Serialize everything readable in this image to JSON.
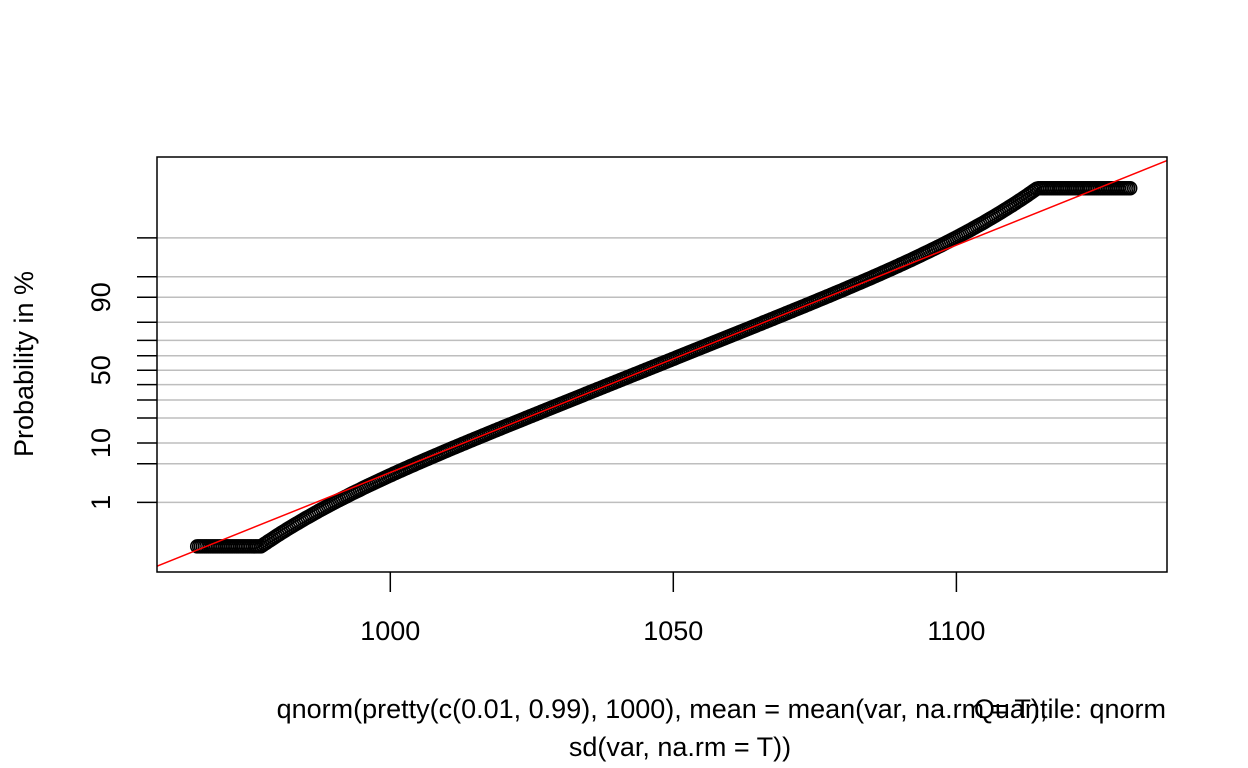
{
  "chart_data": {
    "type": "scatter",
    "title": "",
    "xlabel_lines": [
      "qnorm(pretty(c(0.01, 0.99), 1000), mean = mean(var, na.rm = T),",
      "sd(var, na.rm = T))"
    ],
    "xlabel_overlay": "Quantile: qnorm",
    "ylabel": "Probability in %",
    "x_ticks": [
      1000,
      1050,
      1100
    ],
    "x_tick_labels": [
      "1000",
      "1050",
      "1100"
    ],
    "xlim": [
      958.8,
      1137.2
    ],
    "y_scale": "normal-probability",
    "ylim_probit": [
      -3.55,
      3.75
    ],
    "y_ticks_percent": [
      1,
      5,
      10,
      20,
      30,
      40,
      50,
      60,
      70,
      80,
      90,
      95,
      99
    ],
    "y_tick_labels": [
      "1",
      "10",
      "50",
      "90"
    ],
    "y_tick_labels_at": [
      1,
      10,
      50,
      90
    ],
    "grid": true,
    "reference_line": {
      "color": "#ff0000",
      "mean": 1045,
      "sd": 25
    },
    "points": {
      "x_from": 965.9,
      "x_to": 1130.7,
      "mean": 1045,
      "sd": 25,
      "count": 500,
      "y_range_probit": [
        -3.1,
        3.2
      ],
      "marker": "open-circle"
    },
    "colors": {
      "grid": "#bebebe",
      "points": "#000000",
      "line": "#ff0000",
      "frame": "#000000"
    }
  }
}
